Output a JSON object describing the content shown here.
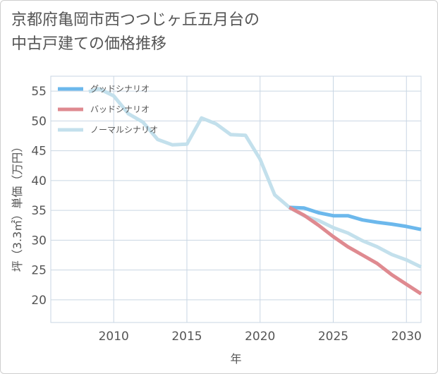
{
  "title_lines": [
    "京都府亀岡市西つつじヶ丘五月台の",
    "中古戸建ての価格推移"
  ],
  "chart_data": {
    "type": "line",
    "title": "京都府亀岡市西つつじヶ丘五月台の中古戸建ての価格推移",
    "xlabel": "年",
    "ylabel": "坪（3.3㎡）単価（万円）",
    "xlim": [
      2005.7,
      2031
    ],
    "ylim": [
      16.2,
      57.5
    ],
    "xticks": [
      2010,
      2015,
      2020,
      2025,
      2030
    ],
    "yticks": [
      20,
      25,
      30,
      35,
      40,
      45,
      50,
      55
    ],
    "grid": true,
    "legend_position": "top-left",
    "series": [
      {
        "name": "グッドシナリオ",
        "color": "#6cb8ec",
        "x": [
          2022,
          2023,
          2024,
          2025,
          2026,
          2027,
          2028,
          2029,
          2030,
          2031
        ],
        "y": [
          35.5,
          35.4,
          34.6,
          34.1,
          34.1,
          33.4,
          33.0,
          32.7,
          32.3,
          31.8
        ]
      },
      {
        "name": "バッドシナリオ",
        "color": "#df8a90",
        "x": [
          2022,
          2023,
          2024,
          2025,
          2026,
          2027,
          2028,
          2029,
          2030,
          2031
        ],
        "y": [
          35.5,
          34.2,
          32.5,
          30.6,
          28.9,
          27.5,
          26.1,
          24.2,
          22.6,
          21.0
        ]
      },
      {
        "name": "ノーマルシナリオ",
        "color": "#c3e0ec",
        "x": [
          2008.3,
          2009,
          2010,
          2011,
          2012,
          2013,
          2014,
          2015,
          2016,
          2017,
          2018,
          2019,
          2020,
          2021,
          2022,
          2023,
          2024,
          2025,
          2026,
          2027,
          2028,
          2029,
          2030,
          2031
        ],
        "y": [
          54.9,
          55.4,
          54.2,
          51.2,
          49.8,
          46.9,
          46.0,
          46.1,
          50.5,
          49.5,
          47.7,
          47.6,
          43.6,
          37.6,
          35.5,
          34.1,
          33.3,
          32.1,
          31.2,
          29.9,
          28.9,
          27.6,
          26.7,
          25.5
        ]
      }
    ]
  }
}
